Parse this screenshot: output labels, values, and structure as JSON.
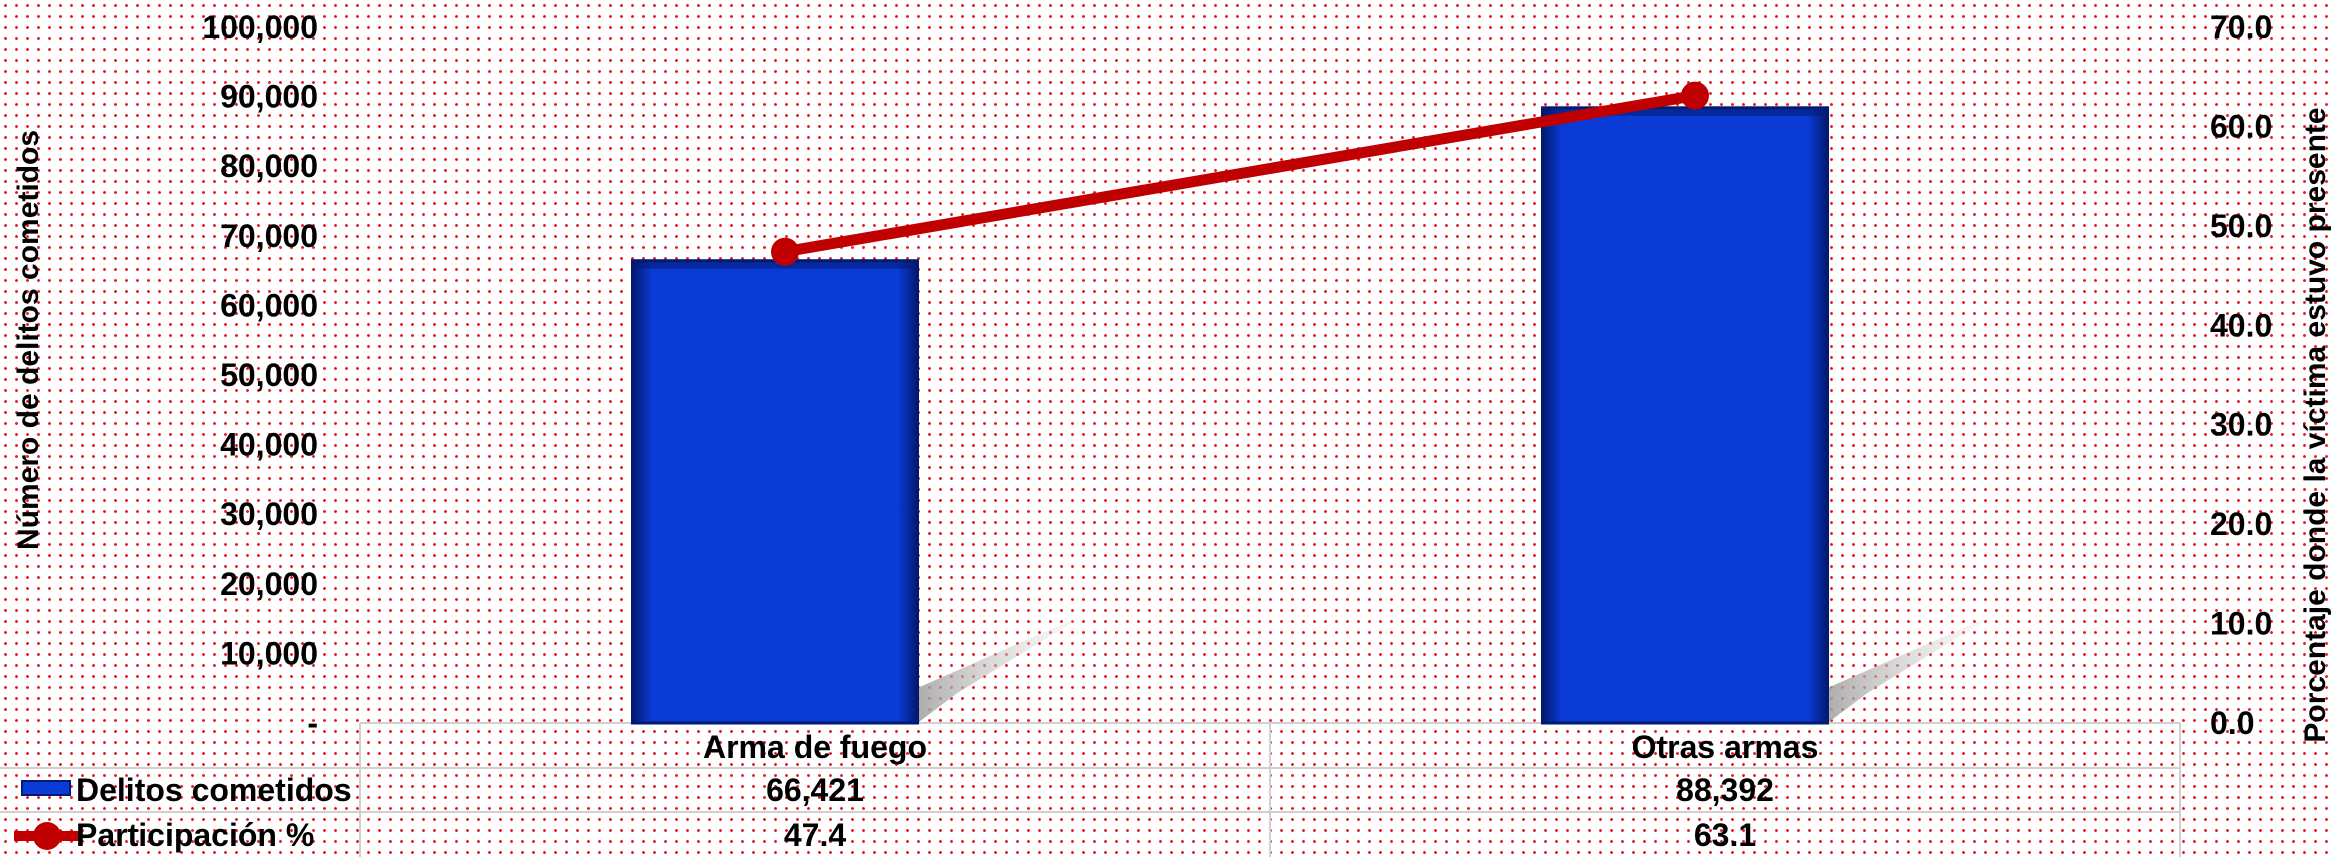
{
  "chart_data": {
    "type": "bar",
    "categories": [
      "Arma de fuego",
      "Otras armas"
    ],
    "series": [
      {
        "name": "Delitos cometidos",
        "type": "bar",
        "axis": "left",
        "values": [
          66421,
          88392
        ],
        "labels": [
          "66,421",
          "88,392"
        ]
      },
      {
        "name": "Participación %",
        "type": "line",
        "axis": "right",
        "values": [
          47.4,
          63.1
        ],
        "labels": [
          "47.4",
          "63.1"
        ]
      }
    ],
    "ylabel": "Número de delitos cometidos",
    "y2label": "Porcentaje donde la víctima estuvo presente",
    "ylim": [
      0,
      100000
    ],
    "y2lim": [
      0,
      70
    ],
    "yticks": [
      "-",
      "10,000",
      "20,000",
      "30,000",
      "40,000",
      "50,000",
      "60,000",
      "70,000",
      "80,000",
      "90,000",
      "100,000"
    ],
    "y2ticks": [
      "0.0",
      "10.0",
      "20.0",
      "30.0",
      "40.0",
      "50.0",
      "60.0",
      "70.0"
    ],
    "legend": "data-table",
    "colors": {
      "bar": "#0a3bd6",
      "bar_dark": "#021a70",
      "line": "#c00000",
      "shadow": "#bdbdbd"
    }
  }
}
